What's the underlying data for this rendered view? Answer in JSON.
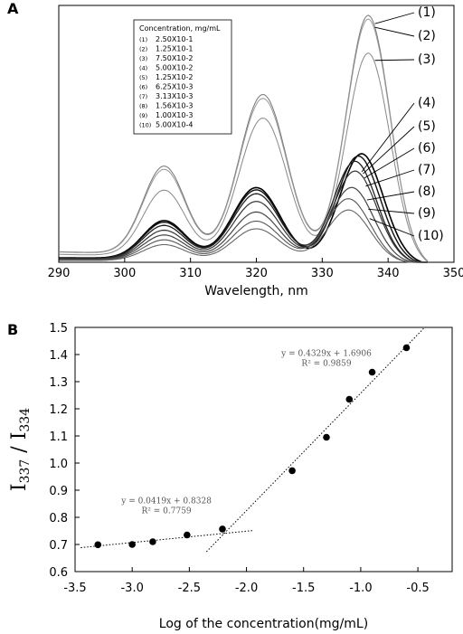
{
  "chart_data": [
    {
      "panel": "A",
      "type": "line",
      "xlabel": "Wavelength, nm",
      "ylabel": "",
      "xlim": [
        290,
        350
      ],
      "x_ticks": [
        "290",
        "300",
        "310",
        "320",
        "330",
        "340",
        "350"
      ],
      "legend_title": "Concentration,  mg/mL",
      "legend_placement": "top-left",
      "series": [
        {
          "name": "(1)",
          "label": "2.50X10-1",
          "peaks": {
            "306": 0.12,
            "321": 0.22,
            "337": 0.33
          }
        },
        {
          "name": "(2)",
          "label": "1.25X10-1",
          "peaks": {
            "306": 0.116,
            "321": 0.215,
            "337": 0.325
          }
        },
        {
          "name": "(3)",
          "label": "7.50X10-2",
          "peaks": {
            "306": 0.09,
            "321": 0.19,
            "337": 0.28
          }
        },
        {
          "name": "(4)",
          "label": "5.00X10-2",
          "peaks": {
            "306": 0.052,
            "320": 0.098,
            "336": 0.145
          }
        },
        {
          "name": "(5)",
          "label": "1.25X10-2",
          "peaks": {
            "306": 0.05,
            "320": 0.095,
            "335.5": 0.142
          }
        },
        {
          "name": "(6)",
          "label": "6.25X10-3",
          "peaks": {
            "306": 0.046,
            "320": 0.09,
            "335": 0.135
          }
        },
        {
          "name": "(7)",
          "label": "3.13X10-3",
          "peaks": {
            "306": 0.04,
            "320": 0.08,
            "335": 0.122
          }
        },
        {
          "name": "(8)",
          "label": "1.56X10-3",
          "peaks": {
            "306": 0.034,
            "320": 0.066,
            "334.5": 0.1
          }
        },
        {
          "name": "(9)",
          "label": "1.00X10-3",
          "peaks": {
            "306": 0.028,
            "320": 0.054,
            "334": 0.085
          }
        },
        {
          "name": "(10)",
          "label": "5.00X10-4",
          "peaks": {
            "306": 0.022,
            "320": 0.044,
            "334": 0.07
          }
        }
      ]
    },
    {
      "panel": "B",
      "type": "scatter",
      "xlabel": "Log of the concentration(mg/mL)",
      "ylabel": "I337 / I334",
      "ylabel_main": "I",
      "ylabel_sub1": "337",
      "ylabel_mid": " / I",
      "ylabel_sub2": "334",
      "xlim": [
        -3.5,
        -0.2
      ],
      "ylim": [
        0.6,
        1.5
      ],
      "x_ticks": [
        -3.5,
        -3.0,
        -2.5,
        -2.0,
        -1.5,
        -1.0,
        -0.5
      ],
      "x_tick_labels": [
        "-3.5",
        "-3.0",
        "-2.5",
        "-2.0",
        "-1.5",
        "-1.0",
        "-0.5"
      ],
      "y_ticks": [
        0.6,
        0.7,
        0.8,
        0.9,
        1.0,
        1.1,
        1.2,
        1.3,
        1.4,
        1.5
      ],
      "y_tick_labels": [
        "0.6",
        "0.7",
        "0.8",
        "0.9",
        "1.0",
        "1.1",
        "1.2",
        "1.3",
        "1.4",
        "1.5"
      ],
      "points": [
        {
          "x": -3.3,
          "y": 0.699
        },
        {
          "x": -3.0,
          "y": 0.7
        },
        {
          "x": -2.82,
          "y": 0.71
        },
        {
          "x": -2.52,
          "y": 0.735
        },
        {
          "x": -2.21,
          "y": 0.757
        },
        {
          "x": -1.6,
          "y": 0.972
        },
        {
          "x": -1.3,
          "y": 1.095
        },
        {
          "x": -1.1,
          "y": 1.235
        },
        {
          "x": -0.9,
          "y": 1.335
        },
        {
          "x": -0.6,
          "y": 1.425
        }
      ],
      "fits": [
        {
          "equation": "y = 0.0419x + 0.8328",
          "r2": "R² = 0.7759",
          "slope": 0.0419,
          "intercept": 0.8328,
          "x_range": [
            -3.45,
            -1.95
          ]
        },
        {
          "equation": "y = 0.4329x + 1.6906",
          "r2": "R² = 0.9859",
          "slope": 0.4329,
          "intercept": 1.6906,
          "x_range": [
            -2.35,
            -0.45
          ]
        }
      ]
    }
  ]
}
